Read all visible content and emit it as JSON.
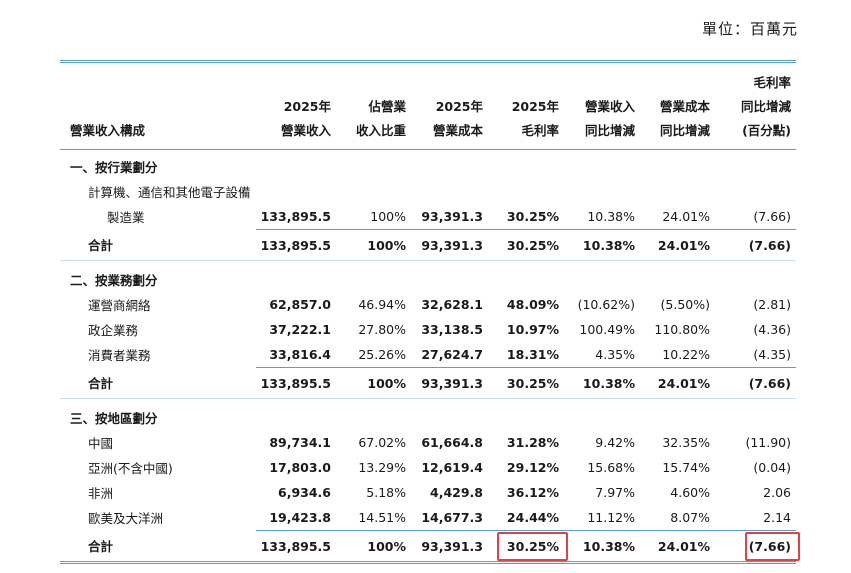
{
  "unit_label": "單位：百萬元",
  "header": {
    "c0": [
      "營業收入構成"
    ],
    "c1": [
      "2025年",
      "營業收入"
    ],
    "c2": [
      "佔營業",
      "收入比重"
    ],
    "c3": [
      "2025年",
      "營業成本"
    ],
    "c4": [
      "2025年",
      "毛利率"
    ],
    "c5": [
      "營業收入",
      "同比增減"
    ],
    "c6": [
      "營業成本",
      "同比增減"
    ],
    "c7": [
      "毛利率",
      "同比增減",
      "(百分點)"
    ]
  },
  "sections": {
    "industry": {
      "title": "一、按行業劃分",
      "item_label_line1": "計算機、通信和其他電子設備",
      "item_label_line2": "製造業",
      "item_values": [
        "133,895.5",
        "100%",
        "93,391.3",
        "30.25%",
        "10.38%",
        "24.01%",
        "(7.66)"
      ],
      "total_label": "合計",
      "total_values": [
        "133,895.5",
        "100%",
        "93,391.3",
        "30.25%",
        "10.38%",
        "24.01%",
        "(7.66)"
      ]
    },
    "business": {
      "title": "二、按業務劃分",
      "rows": [
        {
          "label": "運營商網絡",
          "values": [
            "62,857.0",
            "46.94%",
            "32,628.1",
            "48.09%",
            "(10.62%)",
            "(5.50%)",
            "(2.81)"
          ]
        },
        {
          "label": "政企業務",
          "values": [
            "37,222.1",
            "27.80%",
            "33,138.5",
            "10.97%",
            "100.49%",
            "110.80%",
            "(4.36)"
          ]
        },
        {
          "label": "消費者業務",
          "values": [
            "33,816.4",
            "25.26%",
            "27,624.7",
            "18.31%",
            "4.35%",
            "10.22%",
            "(4.35)"
          ]
        }
      ],
      "total_label": "合計",
      "total_values": [
        "133,895.5",
        "100%",
        "93,391.3",
        "30.25%",
        "10.38%",
        "24.01%",
        "(7.66)"
      ]
    },
    "region": {
      "title": "三、按地區劃分",
      "rows": [
        {
          "label": "中國",
          "values": [
            "89,734.1",
            "67.02%",
            "61,664.8",
            "31.28%",
            "9.42%",
            "32.35%",
            "(11.90)"
          ]
        },
        {
          "label": "亞洲(不含中國)",
          "values": [
            "17,803.0",
            "13.29%",
            "12,619.4",
            "29.12%",
            "15.68%",
            "15.74%",
            "(0.04)"
          ]
        },
        {
          "label": "非洲",
          "values": [
            "6,934.6",
            "5.18%",
            "4,429.8",
            "36.12%",
            "7.97%",
            "4.60%",
            "2.06"
          ]
        },
        {
          "label": "歐美及大洋洲",
          "values": [
            "19,423.8",
            "14.51%",
            "14,677.3",
            "24.44%",
            "11.12%",
            "8.07%",
            "2.14"
          ]
        }
      ],
      "total_label": "合計",
      "total_values": [
        "133,895.5",
        "100%",
        "93,391.3",
        "30.25%",
        "10.38%",
        "24.01%",
        "(7.66)"
      ]
    }
  },
  "highlight_color": "#e0404a",
  "rule_color": "#5aa0cf"
}
